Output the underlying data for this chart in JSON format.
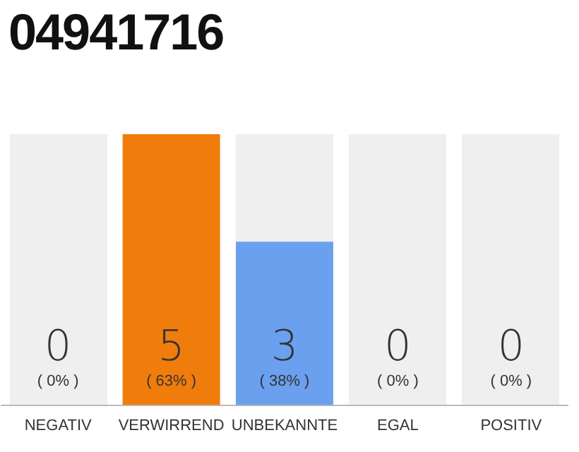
{
  "chart_data": {
    "type": "bar",
    "title": "04941716",
    "categories": [
      "NEGATIV",
      "VERWIRREND",
      "UNBEKANNTE",
      "EGAL",
      "POSITIV"
    ],
    "values": [
      0,
      63,
      38,
      0,
      0
    ],
    "colors": [
      "#6aa0ee",
      "#f07c0c",
      "#6aa0ee",
      "#6aa0ee",
      "#6aa0ee"
    ],
    "value_labels": [
      "( 0% )",
      "( 63% )",
      "( 38% )",
      "( 0% )",
      "( 0% )"
    ],
    "annotations": [
      {
        "text": "0",
        "x": "NEGATIV",
        "y": 0
      },
      {
        "text": "5",
        "x": "VERWIRREND",
        "y": 0
      },
      {
        "text": "3",
        "x": "UNBEKANNTE",
        "y": 0
      },
      {
        "text": "0",
        "x": "EGAL",
        "y": 0
      },
      {
        "text": "0",
        "x": "POSITIV",
        "y": 0
      }
    ],
    "tick_labels": "x"
  }
}
